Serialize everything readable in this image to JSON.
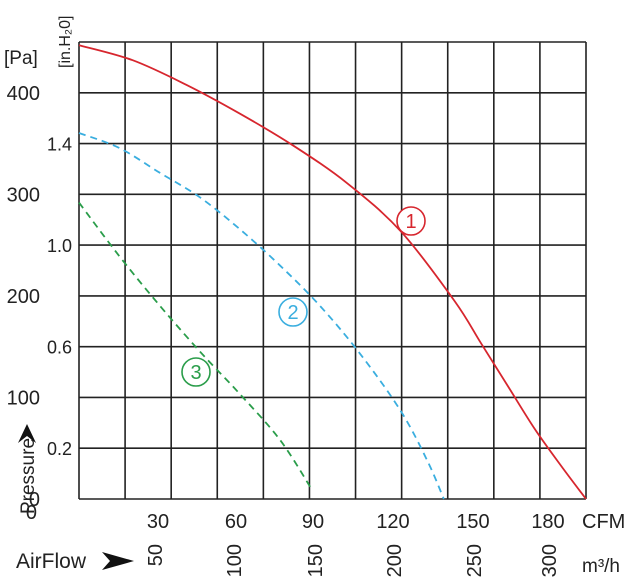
{
  "chart_data": {
    "type": "line",
    "title": "",
    "xlabel": "AirFlow",
    "ylabel": "Pressure",
    "x_units": {
      "primary": "CFM",
      "secondary": "m³/h"
    },
    "y_units": {
      "primary": "[Pa]",
      "secondary": "[in.H₂0]"
    },
    "xlim": [
      0,
      189
    ],
    "ylim": [
      0,
      427
    ],
    "grid": true,
    "legend": "inline numbered circles",
    "x_ticks_cfm": [
      "30",
      "60",
      "90",
      "120",
      "150",
      "180"
    ],
    "x_ticks_m3h": [
      "50",
      "100",
      "150",
      "200",
      "250",
      "300"
    ],
    "y_ticks_pa": [
      "0",
      "100",
      "200",
      "300",
      "400"
    ],
    "y_ticks_inh2o": [
      "0.2",
      "0.6",
      "1.0",
      "1.4"
    ],
    "series": [
      {
        "name": "1",
        "color": "#d7262e",
        "style": "solid",
        "x": [
          0,
          20,
          40,
          60,
          80,
          100,
          120,
          140,
          150,
          160,
          170,
          180,
          189
        ],
        "y": [
          424,
          410,
          387,
          360,
          330,
          295,
          250,
          185,
          145,
          105,
          65,
          30,
          0
        ]
      },
      {
        "name": "2",
        "color": "#3aaedf",
        "style": "dashed",
        "x": [
          0,
          15,
          30,
          45,
          60,
          75,
          90,
          105,
          120,
          130,
          136
        ],
        "y": [
          342,
          328,
          305,
          282,
          252,
          218,
          180,
          135,
          82,
          35,
          0
        ]
      },
      {
        "name": "3",
        "color": "#2a9d4a",
        "style": "dashed",
        "x": [
          0,
          15,
          30,
          45,
          60,
          75,
          87
        ],
        "y": [
          277,
          227,
          181,
          138,
          98,
          55,
          8
        ]
      }
    ]
  }
}
